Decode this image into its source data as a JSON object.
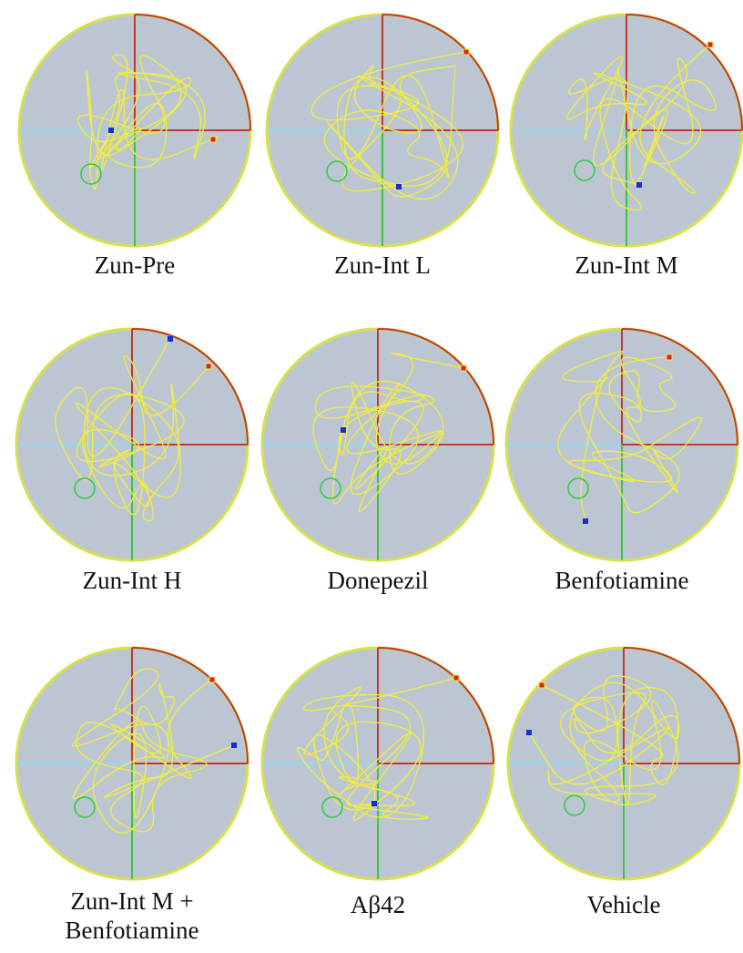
{
  "panels": [
    {
      "label_lines": [
        "Zun-Pre"
      ]
    },
    {
      "label_lines": [
        "Zun-Int L"
      ]
    },
    {
      "label_lines": [
        "Zun-Int M"
      ]
    },
    {
      "label_lines": [
        "Zun-Int H"
      ]
    },
    {
      "label_lines": [
        "Donepezil"
      ]
    },
    {
      "label_lines": [
        "Benfotiamine"
      ]
    },
    {
      "label_lines": [
        "Zun-Int M +",
        "Benfotiamine"
      ]
    },
    {
      "label_lines": [
        "Aβ42"
      ]
    },
    {
      "label_lines": [
        "Vehicle"
      ]
    }
  ]
}
